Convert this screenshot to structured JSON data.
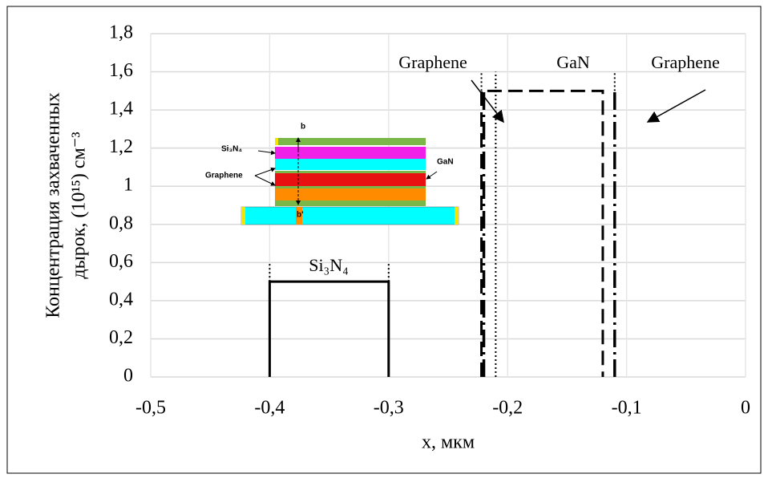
{
  "chart_data": {
    "type": "line",
    "x_label": "x, мкм",
    "y_label": [
      "Концентрация захваченных",
      "дырок, (10¹⁵) см⁻³"
    ],
    "xlim": [
      -0.5,
      0
    ],
    "xticks": [
      {
        "value": -0.5,
        "label": "-0,5"
      },
      {
        "value": -0.4,
        "label": "-0,4"
      },
      {
        "value": -0.3,
        "label": "-0,3"
      },
      {
        "value": -0.2,
        "label": "-0,2"
      },
      {
        "value": -0.1,
        "label": "-0,1"
      },
      0
    ],
    "ylim": [
      0,
      1.8
    ],
    "yticks": [
      0,
      {
        "value": 0.2,
        "label": "0,2"
      },
      {
        "value": 0.4,
        "label": "0,4"
      },
      {
        "value": 0.6,
        "label": "0,6"
      },
      {
        "value": 0.8,
        "label": "0,8"
      },
      1,
      {
        "value": 1.2,
        "label": "1,2"
      },
      {
        "value": 1.4,
        "label": "1,4"
      },
      {
        "value": 1.6,
        "label": "1,6"
      },
      {
        "value": 1.8,
        "label": "1,8"
      }
    ],
    "grid": true,
    "series": [
      {
        "color": "#000000",
        "style": "solid",
        "x": [
          -0.4,
          -0.4,
          -0.3,
          -0.3
        ],
        "y": [
          0,
          0.5,
          0.5,
          0
        ]
      },
      {
        "color": "#000000",
        "style": "dotted",
        "x": [
          -0.4,
          -0.4,
          null,
          -0.3,
          -0.3,
          null,
          -0.222,
          -0.222,
          null,
          -0.21,
          -0.21,
          null,
          -0.11,
          -0.11
        ],
        "y": [
          0.5,
          0.6,
          null,
          0.5,
          0.6,
          null,
          1.5,
          1.6,
          null,
          0,
          1.6,
          null,
          1.5,
          1.6
        ]
      },
      {
        "color": "#000000",
        "style": "dashed",
        "x": [
          -0.222,
          -0.222,
          -0.12,
          -0.12
        ],
        "y": [
          0,
          1.5,
          1.5,
          0
        ]
      },
      {
        "color": "#000000",
        "style": "dashdot",
        "x": [
          -0.22,
          -0.22,
          null,
          -0.11,
          -0.11
        ],
        "y": [
          0,
          1.5,
          null,
          0,
          1.5
        ]
      }
    ],
    "annotations": [
      "Graphene",
      "GaN",
      "Graphene",
      "Si₃N₄"
    ],
    "inset_labels": [
      "b",
      "Si₃N₄",
      "Graphene",
      "GaN",
      "b'"
    ]
  }
}
